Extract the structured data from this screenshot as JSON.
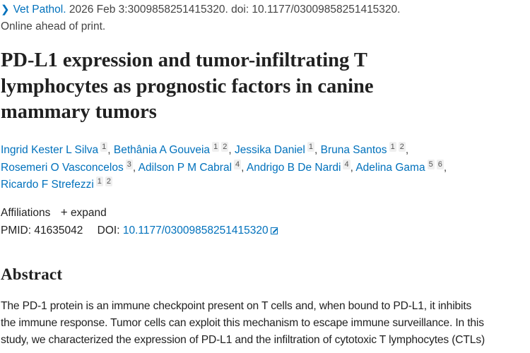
{
  "citation": {
    "journal": "Vet Pathol.",
    "details": " 2026 Feb 3:3009858251415320. doi: 10.1177/03009858251415320.",
    "status": "Online ahead of print."
  },
  "title_lines": [
    "PD-L1 expression and tumor-infiltrating T",
    "lymphocytes as prognostic factors in canine",
    "mammary tumors"
  ],
  "authors": [
    [
      {
        "name": "Ingrid Kester L Silva",
        "affs": [
          "1"
        ]
      },
      {
        "name": "Bethânia A Gouveia",
        "affs": [
          "1",
          "2"
        ]
      },
      {
        "name": "Jessika Daniel",
        "affs": [
          "1"
        ]
      },
      {
        "name": "Bruna Santos",
        "affs": [
          "1",
          "2"
        ]
      }
    ],
    [
      {
        "name": "Rosemeri O Vasconcelos",
        "affs": [
          "3"
        ]
      },
      {
        "name": "Adilson P M Cabral",
        "affs": [
          "4"
        ]
      },
      {
        "name": "Andrigo B De Nardi",
        "affs": [
          "4"
        ]
      },
      {
        "name": "Adelina Gama",
        "affs": [
          "5",
          "6"
        ]
      }
    ],
    [
      {
        "name": "Ricardo F Strefezzi",
        "affs": [
          "1",
          "2"
        ]
      }
    ]
  ],
  "affiliations": {
    "label": "Affiliations",
    "expand": "expand"
  },
  "ids": {
    "pmid_label": "PMID:",
    "pmid": "41635042",
    "doi_label": "DOI:",
    "doi": "10.1177/03009858251415320"
  },
  "abstract": {
    "heading": "Abstract",
    "lines": [
      "The PD-1 protein is an immune checkpoint present on T cells and, when bound to PD-L1, it inhibits",
      "the immune response. Tumor cells can exploit this mechanism to escape immune surveillance. In this",
      "study, we characterized the expression of PD-L1 and the infiltration of cytotoxic T lymphocytes (CTLs)"
    ]
  },
  "colors": {
    "link": "#0071bc",
    "text": "#212121"
  }
}
